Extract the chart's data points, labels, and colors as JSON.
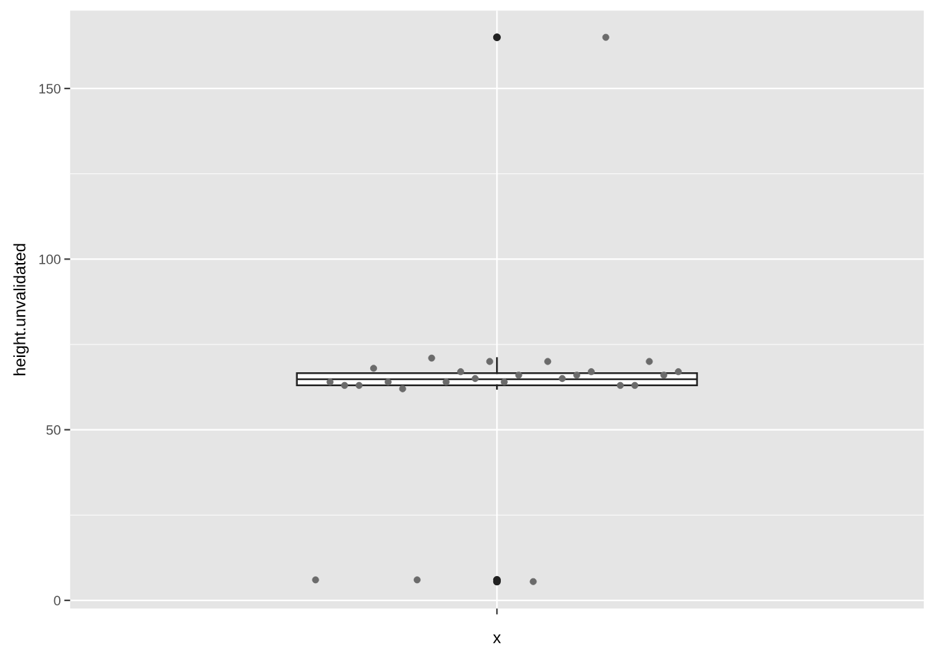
{
  "chart_data": {
    "type": "box",
    "xlabel": "x",
    "ylabel": "height.unvalidated",
    "categories": [
      null
    ],
    "boxes": [
      {
        "low": 62,
        "q1": 63,
        "median": 64.8,
        "q3": 66.6,
        "high": 71,
        "outliers": [
          165,
          6,
          5.5
        ]
      }
    ],
    "series": [
      {
        "type": "scatter",
        "color": "#6b6b6b",
        "x": [
          null,
          null,
          null,
          null,
          null,
          null,
          null,
          null,
          null,
          null,
          null,
          null,
          null,
          null,
          null,
          null,
          null,
          null,
          null,
          null,
          null,
          null,
          null,
          null,
          null,
          null
        ],
        "values": [
          6,
          64,
          63,
          63,
          68,
          64,
          62,
          6,
          71,
          64,
          67,
          65,
          70,
          64,
          66,
          5.5,
          70,
          65,
          66,
          67,
          165,
          63,
          63,
          70,
          66,
          67
        ]
      }
    ],
    "ylim": [
      -2.4,
      172.8
    ],
    "yticks": [
      0,
      50,
      100,
      150
    ],
    "grid": true,
    "marker": "circle"
  }
}
